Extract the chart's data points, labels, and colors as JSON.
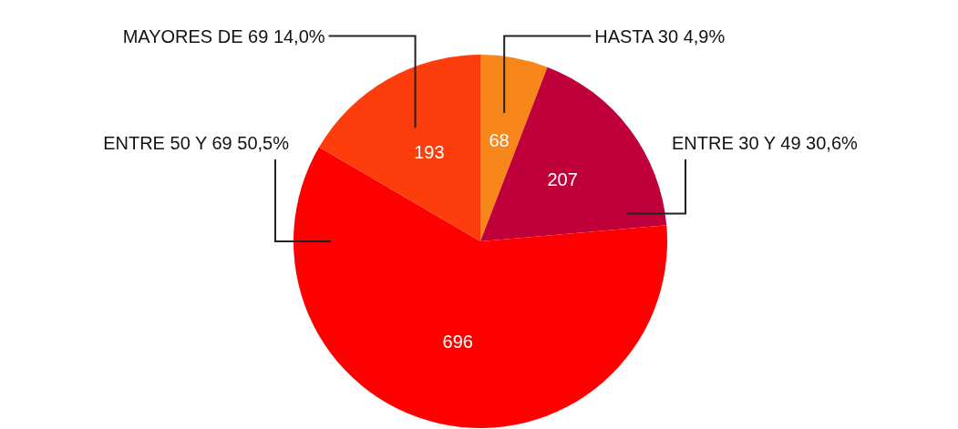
{
  "chart_data": {
    "type": "pie",
    "categories": [
      "HASTA 30 4,9%",
      "ENTRE 30 Y 49 30,6%",
      "ENTRE 50 Y 69 50,5%",
      "MAYORES DE 69 14,0%"
    ],
    "values": [
      68,
      207,
      696,
      193
    ],
    "colors": [
      "#f7861b",
      "#c0003a",
      "#fe0000",
      "#fe3d0c"
    ],
    "data_labels": true
  }
}
